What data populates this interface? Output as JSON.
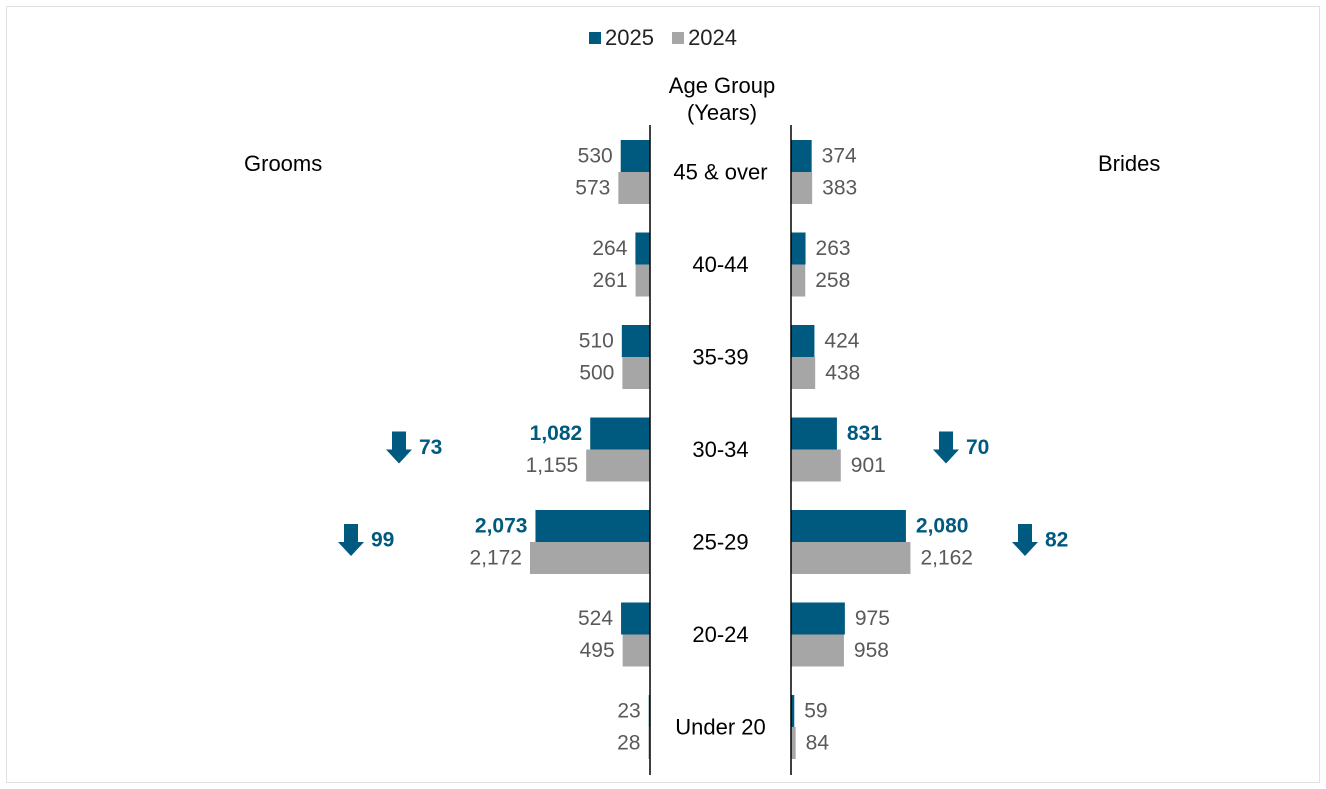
{
  "legend": {
    "items": [
      {
        "label": "2025",
        "color": "#005a7f"
      },
      {
        "label": "2024",
        "color": "#a6a6a6"
      }
    ]
  },
  "axis": {
    "title_line1": "Age Group",
    "title_line2": "(Years)"
  },
  "sides": {
    "left": "Grooms",
    "right": "Brides"
  },
  "chart_data": {
    "type": "bar",
    "orientation": "horizontal-butterfly",
    "categories": [
      "45 & over",
      "40-44",
      "35-39",
      "30-34",
      "25-29",
      "20-24",
      "Under 20"
    ],
    "grooms": {
      "2025": [
        530,
        264,
        510,
        1082,
        2073,
        524,
        23
      ],
      "2024": [
        573,
        261,
        500,
        1155,
        2172,
        495,
        28
      ],
      "labels_2025": [
        "530",
        "264",
        "510",
        "1,082",
        "2,073",
        "524",
        "23"
      ],
      "labels_2024": [
        "573",
        "261",
        "500",
        "1,155",
        "2,172",
        "495",
        "28"
      ]
    },
    "brides": {
      "2025": [
        374,
        263,
        424,
        831,
        2080,
        975,
        59
      ],
      "2024": [
        383,
        258,
        438,
        901,
        2162,
        958,
        84
      ],
      "labels_2025": [
        "374",
        "263",
        "424",
        "831",
        "2,080",
        "975",
        "59"
      ],
      "labels_2024": [
        "383",
        "258",
        "438",
        "901",
        "2,162",
        "958",
        "84"
      ]
    },
    "bold_2025_categories": [
      "30-34",
      "25-29"
    ],
    "annotations": [
      {
        "side": "grooms",
        "category": "30-34",
        "direction": "down",
        "value": "73"
      },
      {
        "side": "grooms",
        "category": "25-29",
        "direction": "down",
        "value": "99"
      },
      {
        "side": "brides",
        "category": "30-34",
        "direction": "down",
        "value": "70"
      },
      {
        "side": "brides",
        "category": "25-29",
        "direction": "down",
        "value": "82"
      }
    ],
    "colors": {
      "2025": "#005a7f",
      "2024": "#a6a6a6",
      "annotation": "#005a7f"
    }
  }
}
